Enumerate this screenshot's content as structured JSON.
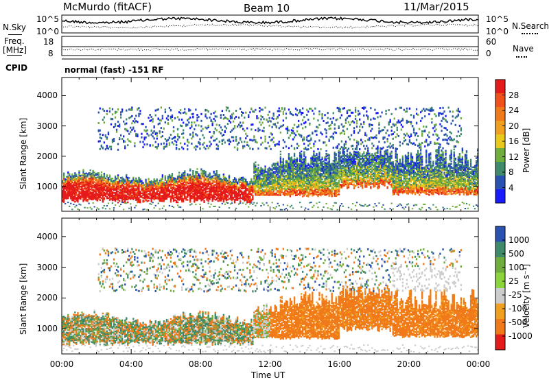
{
  "header": {
    "station": "McMurdo (fitACF)",
    "beam": "Beam 10",
    "date": "11/Mar/2015"
  },
  "nsky_panel": {
    "left_label": "N.Sky",
    "right_label": "N.Search",
    "left_ticks": [
      "10^5",
      "10^0"
    ],
    "right_ticks": [
      "10^5",
      "10^0"
    ]
  },
  "freq_panel": {
    "left_label": "Freq.",
    "left_unit": "[MHz]",
    "right_label": "Nave",
    "left_ticks": [
      "18",
      "8"
    ],
    "right_ticks": [
      "60",
      "0"
    ]
  },
  "cpid": {
    "label": "CPID",
    "value": "normal (fast) -151 RF"
  },
  "time_axis": {
    "title": "Time UT",
    "ticks": [
      "00:00",
      "04:00",
      "08:00",
      "12:00",
      "16:00",
      "20:00",
      "00:00"
    ]
  },
  "chart_data": [
    {
      "type": "heatmap",
      "title": "",
      "xlabel": "",
      "ylabel": "Slant Range [km]",
      "x_range_hours": [
        0,
        24
      ],
      "ylim": [
        180,
        4600
      ],
      "y_ticks": [
        "4000",
        "3000",
        "2000",
        "1000"
      ],
      "y_tick_values": [
        4000,
        3000,
        2000,
        1000
      ],
      "colorbar": {
        "label": "Power [dB]",
        "ticks": [
          "28",
          "24",
          "20",
          "16",
          "12",
          "8",
          "4"
        ],
        "colors": [
          "#e51a1a",
          "#f0501a",
          "#f07a1a",
          "#f0a020",
          "#e8c81a",
          "#6fae3c",
          "#3e8a6a",
          "#2a52b0",
          "#1a1aff"
        ]
      },
      "features": [
        {
          "t": [
            0,
            11
          ],
          "range": [
            500,
            1400
          ],
          "level": "high"
        },
        {
          "t": [
            11,
            24
          ],
          "range": [
            600,
            2300
          ],
          "level": "medium"
        },
        {
          "t": [
            2,
            23
          ],
          "range": [
            2300,
            3500
          ],
          "level": "low"
        }
      ]
    },
    {
      "type": "heatmap",
      "title": "",
      "xlabel": "Time UT",
      "ylabel": "Slant Range [km]",
      "x_range_hours": [
        0,
        24
      ],
      "ylim": [
        180,
        4600
      ],
      "y_ticks": [
        "4000",
        "3000",
        "2000",
        "1000"
      ],
      "y_tick_values": [
        4000,
        3000,
        2000,
        1000
      ],
      "colorbar": {
        "label": "Velocity [m s⁻¹]",
        "ticks": [
          "1000",
          "500",
          "100",
          "25",
          "-25",
          "-100",
          "-500",
          "-1000"
        ],
        "colors": [
          "#2a52b0",
          "#3e8a6a",
          "#6fae3c",
          "#8cd43c",
          "#cccccc",
          "#f0a020",
          "#f07a1a",
          "#e51a1a"
        ]
      },
      "features": [
        {
          "t": [
            0,
            11
          ],
          "range": [
            500,
            1400
          ],
          "velocity": "weak positive"
        },
        {
          "t": [
            12,
            24
          ],
          "range": [
            600,
            2400
          ],
          "velocity": "negative (-100 to -500)"
        },
        {
          "t": [
            19,
            24
          ],
          "range": [
            2200,
            3000
          ],
          "velocity": "near zero"
        }
      ]
    }
  ]
}
